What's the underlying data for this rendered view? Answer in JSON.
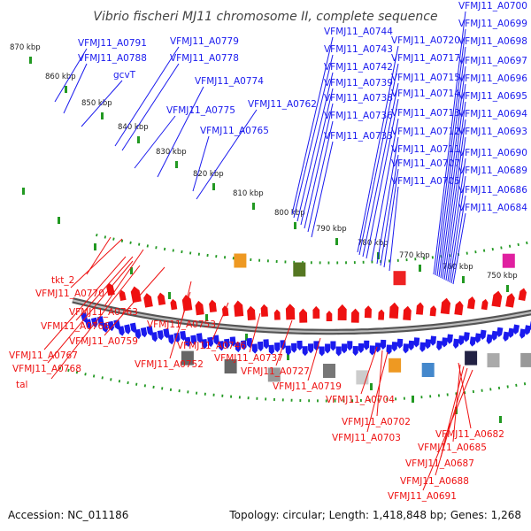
{
  "title": "Vibrio fischeri MJ11 chromosome II, complete sequence",
  "footer": {
    "accession": "Accession: NC_011186",
    "topology": "Topology: circular; Length: 1,418,848 bp; Genes: 1,268"
  },
  "colors": {
    "forward": "#1a1aee",
    "reverse": "#ee1111",
    "backbone": "#8a8a8a",
    "tick": "#229922"
  },
  "ruler": [
    {
      "label": "870 kbp"
    },
    {
      "label": "860 kbp"
    },
    {
      "label": "850 kbp"
    },
    {
      "label": "840 kbp"
    },
    {
      "label": "830 kbp"
    },
    {
      "label": "820 kbp"
    },
    {
      "label": "810 kbp"
    },
    {
      "label": "800 kbp"
    },
    {
      "label": "790 kbp"
    },
    {
      "label": "780 kbp"
    },
    {
      "label": "770 kbp"
    },
    {
      "label": "760 kbp"
    },
    {
      "label": "750 kbp"
    }
  ],
  "forward_labels": [
    "VFMJ11_A0791",
    "VFMJ11_A0788",
    "gcvT",
    "VFMJ11_A0779",
    "VFMJ11_A0778",
    "VFMJ11_A0774",
    "VFMJ11_A0775",
    "VFMJ11_A0762",
    "VFMJ11_A0765",
    "VFMJ11_A0744",
    "VFMJ11_A0743",
    "VFMJ11_A0742",
    "VFMJ11_A0739",
    "VFMJ11_A0738",
    "VFMJ11_A0736",
    "VFMJ11_A0733",
    "VFMJ11_A0720",
    "VFMJ11_A0717",
    "VFMJ11_A0715",
    "VFMJ11_A0714",
    "VFMJ11_A0713",
    "VFMJ11_A0712",
    "VFMJ11_A0711",
    "VFMJ11_A0707",
    "VFMJ11_A0705",
    "VFMJ11_A0700",
    "VFMJ11_A0699",
    "VFMJ11_A0698",
    "VFMJ11_A0697",
    "VFMJ11_A0696",
    "VFMJ11_A0695",
    "VFMJ11_A0694",
    "VFMJ11_A0693",
    "VFMJ11_A0690",
    "VFMJ11_A0689",
    "VFMJ11_A0686",
    "VFMJ11_A0684"
  ],
  "reverse_labels": [
    "tkt_2",
    "VFMJ11_A0770",
    "VFMJ11_A0763",
    "VFMJ11_A0766",
    "VFMJ11_A0759",
    "VFMJ11_A0767",
    "VFMJ11_A0768",
    "tal",
    "VFMJ11_A0753",
    "VFMJ11_A0752",
    "VFMJ11_A0746",
    "VFMJ11_A0737",
    "VFMJ11_A0727",
    "VFMJ11_A0719",
    "VFMJ11_A0704",
    "VFMJ11_A0702",
    "VFMJ11_A0703",
    "VFMJ11_A0682",
    "VFMJ11_A0685",
    "VFMJ11_A0687",
    "VFMJ11_A0688",
    "VFMJ11_A0691"
  ]
}
